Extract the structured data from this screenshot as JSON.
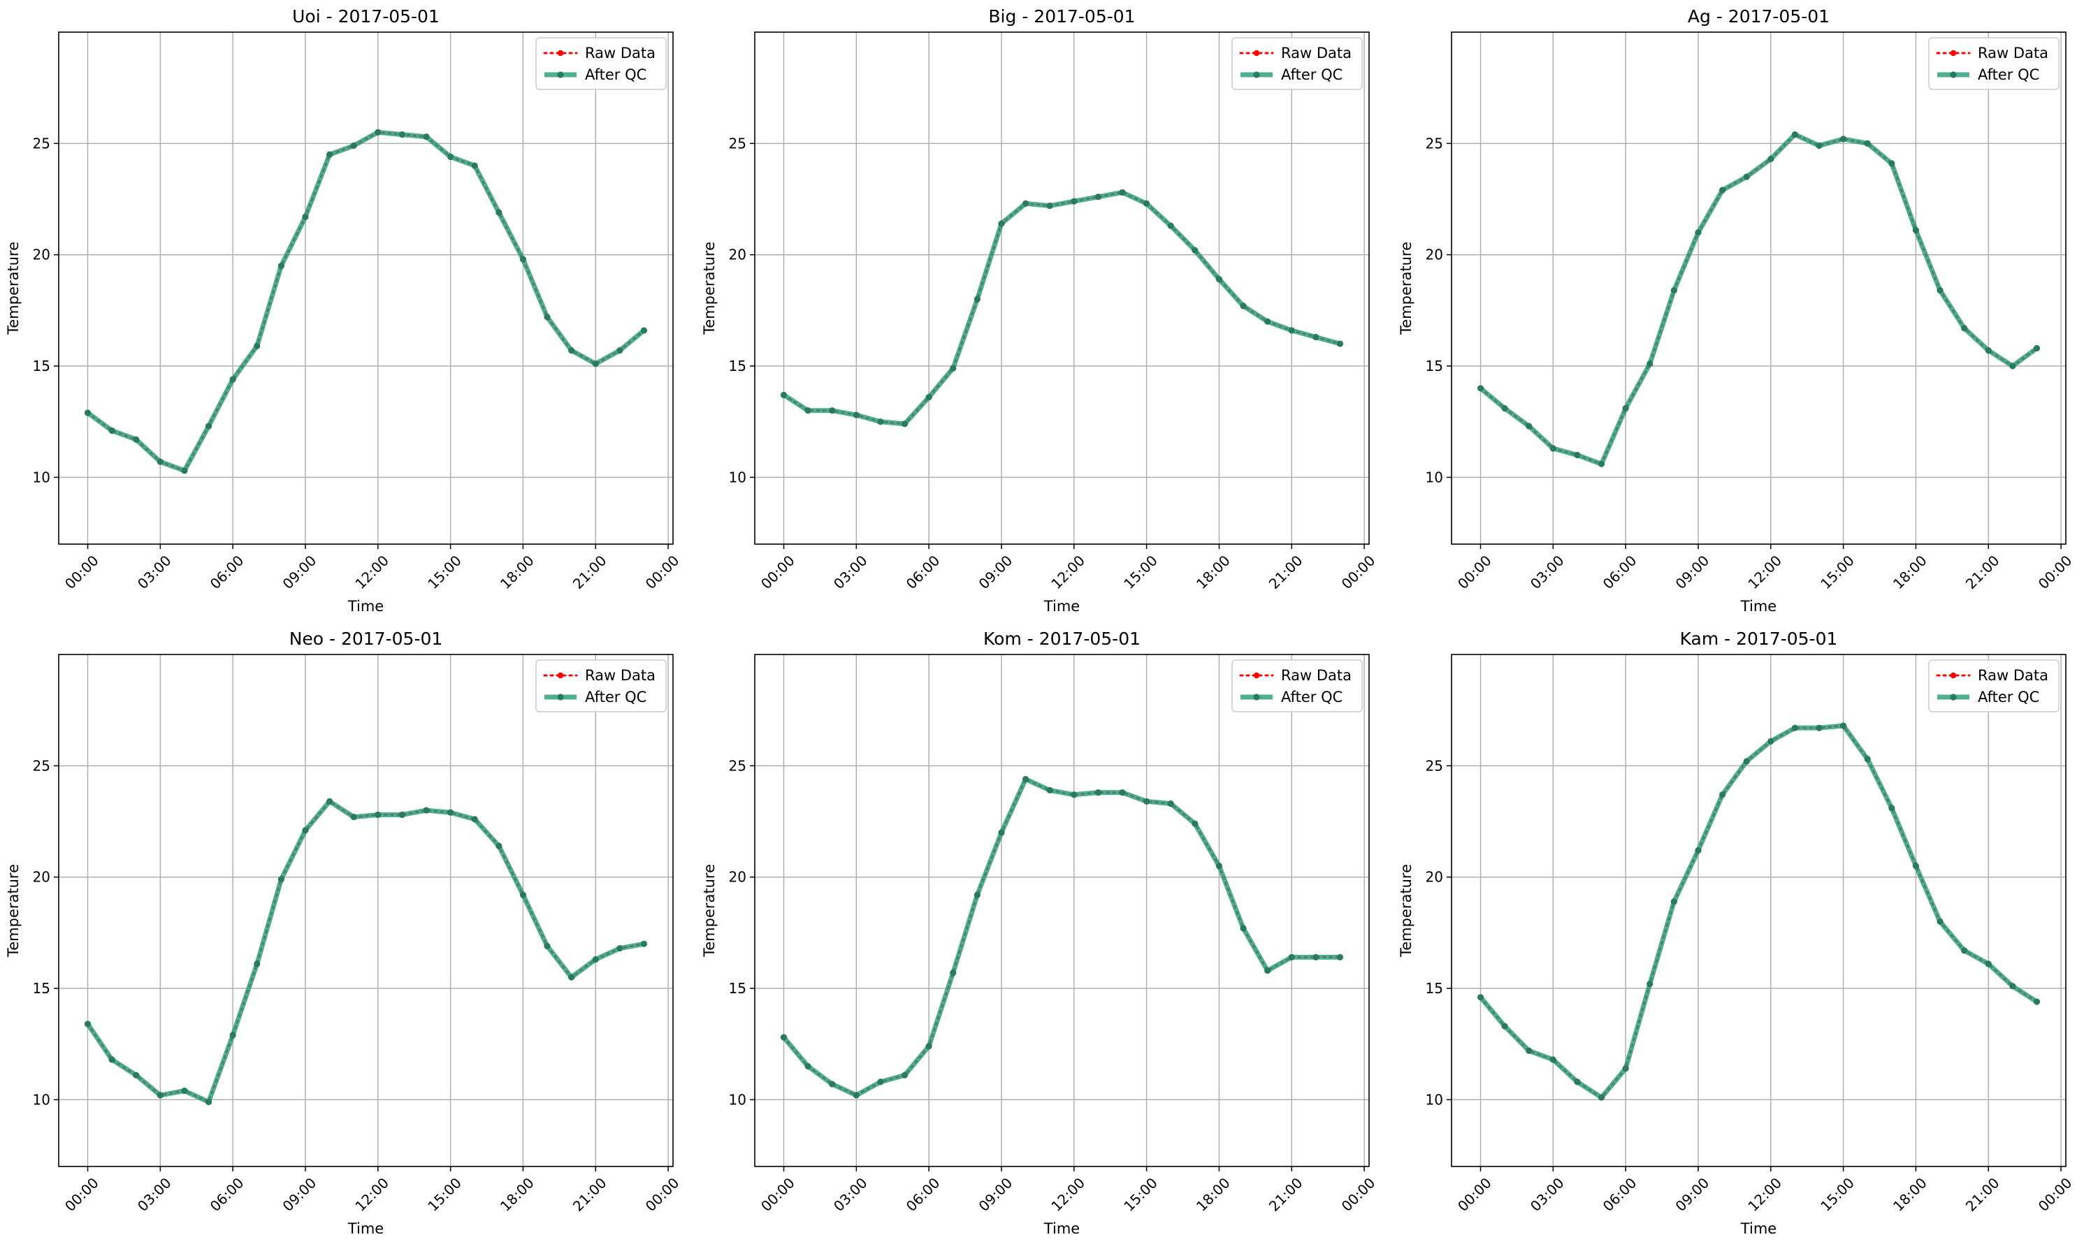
{
  "legend": {
    "raw_label": "Raw Data",
    "qc_label": "After QC",
    "placement": "upper right"
  },
  "colors": {
    "raw": "#ff0000",
    "qc": "#2a9d7a",
    "qc_marker": "#2a7a60",
    "grid": "#b0b0b0",
    "axes": "#000000"
  },
  "chart_data": [
    {
      "type": "line",
      "title": "Uoi - 2017-05-01",
      "xlabel": "Time",
      "ylabel": "Temperature",
      "x_ticks": [
        "00:00",
        "03:00",
        "06:00",
        "09:00",
        "12:00",
        "15:00",
        "18:00",
        "21:00",
        "00:00"
      ],
      "y_ticks": [
        10,
        15,
        20,
        25
      ],
      "ylim": [
        7,
        30
      ],
      "grid": true,
      "x": [
        "00:00",
        "01:00",
        "02:00",
        "03:00",
        "04:00",
        "05:00",
        "06:00",
        "07:00",
        "08:00",
        "09:00",
        "10:00",
        "11:00",
        "12:00",
        "13:00",
        "14:00",
        "15:00",
        "16:00",
        "17:00",
        "18:00",
        "19:00",
        "20:00",
        "21:00",
        "22:00",
        "23:00"
      ],
      "series": [
        {
          "name": "Raw Data",
          "values": [
            12.9,
            12.1,
            11.7,
            10.7,
            10.3,
            12.3,
            14.4,
            15.9,
            19.5,
            21.7,
            24.5,
            24.9,
            25.5,
            25.4,
            25.3,
            24.4,
            24.0,
            21.9,
            19.8,
            17.2,
            15.7,
            15.1,
            15.7,
            16.6
          ]
        },
        {
          "name": "After QC",
          "values": [
            12.9,
            12.1,
            11.7,
            10.7,
            10.3,
            12.3,
            14.4,
            15.9,
            19.5,
            21.7,
            24.5,
            24.9,
            25.5,
            25.4,
            25.3,
            24.4,
            24.0,
            21.9,
            19.8,
            17.2,
            15.7,
            15.1,
            15.7,
            16.6
          ]
        }
      ]
    },
    {
      "type": "line",
      "title": "Big - 2017-05-01",
      "xlabel": "Time",
      "ylabel": "Temperature",
      "x_ticks": [
        "00:00",
        "03:00",
        "06:00",
        "09:00",
        "12:00",
        "15:00",
        "18:00",
        "21:00",
        "00:00"
      ],
      "y_ticks": [
        10,
        15,
        20,
        25
      ],
      "ylim": [
        7,
        30
      ],
      "grid": true,
      "x": [
        "00:00",
        "01:00",
        "02:00",
        "03:00",
        "04:00",
        "05:00",
        "06:00",
        "07:00",
        "08:00",
        "09:00",
        "10:00",
        "11:00",
        "12:00",
        "13:00",
        "14:00",
        "15:00",
        "16:00",
        "17:00",
        "18:00",
        "19:00",
        "20:00",
        "21:00",
        "22:00",
        "23:00"
      ],
      "series": [
        {
          "name": "Raw Data",
          "values": [
            13.7,
            13.0,
            13.0,
            12.8,
            12.5,
            12.4,
            13.6,
            14.9,
            18.0,
            21.4,
            22.3,
            22.2,
            22.4,
            22.6,
            22.8,
            22.3,
            21.3,
            20.2,
            18.9,
            17.7,
            17.0,
            16.6,
            16.3,
            16.0
          ]
        },
        {
          "name": "After QC",
          "values": [
            13.7,
            13.0,
            13.0,
            12.8,
            12.5,
            12.4,
            13.6,
            14.9,
            18.0,
            21.4,
            22.3,
            22.2,
            22.4,
            22.6,
            22.8,
            22.3,
            21.3,
            20.2,
            18.9,
            17.7,
            17.0,
            16.6,
            16.3,
            16.0
          ]
        }
      ]
    },
    {
      "type": "line",
      "title": "Ag - 2017-05-01",
      "xlabel": "Time",
      "ylabel": "Temperature",
      "x_ticks": [
        "00:00",
        "03:00",
        "06:00",
        "09:00",
        "12:00",
        "15:00",
        "18:00",
        "21:00",
        "00:00"
      ],
      "y_ticks": [
        10,
        15,
        20,
        25
      ],
      "ylim": [
        7,
        30
      ],
      "grid": true,
      "x": [
        "00:00",
        "01:00",
        "02:00",
        "03:00",
        "04:00",
        "05:00",
        "06:00",
        "07:00",
        "08:00",
        "09:00",
        "10:00",
        "11:00",
        "12:00",
        "13:00",
        "14:00",
        "15:00",
        "16:00",
        "17:00",
        "18:00",
        "19:00",
        "20:00",
        "21:00",
        "22:00",
        "23:00"
      ],
      "series": [
        {
          "name": "Raw Data",
          "values": [
            14.0,
            13.1,
            12.3,
            11.3,
            11.0,
            10.6,
            13.1,
            15.1,
            18.4,
            21.0,
            22.9,
            23.5,
            24.3,
            25.4,
            24.9,
            25.2,
            25.0,
            24.1,
            21.1,
            18.4,
            16.7,
            15.7,
            15.0,
            15.8
          ]
        },
        {
          "name": "After QC",
          "values": [
            14.0,
            13.1,
            12.3,
            11.3,
            11.0,
            10.6,
            13.1,
            15.1,
            18.4,
            21.0,
            22.9,
            23.5,
            24.3,
            25.4,
            24.9,
            25.2,
            25.0,
            24.1,
            21.1,
            18.4,
            16.7,
            15.7,
            15.0,
            15.8
          ]
        }
      ]
    },
    {
      "type": "line",
      "title": "Neo - 2017-05-01",
      "xlabel": "Time",
      "ylabel": "Temperature",
      "x_ticks": [
        "00:00",
        "03:00",
        "06:00",
        "09:00",
        "12:00",
        "15:00",
        "18:00",
        "21:00",
        "00:00"
      ],
      "y_ticks": [
        10,
        15,
        20,
        25
      ],
      "ylim": [
        7,
        30
      ],
      "grid": true,
      "x": [
        "00:00",
        "01:00",
        "02:00",
        "03:00",
        "04:00",
        "05:00",
        "06:00",
        "07:00",
        "08:00",
        "09:00",
        "10:00",
        "11:00",
        "12:00",
        "13:00",
        "14:00",
        "15:00",
        "16:00",
        "17:00",
        "18:00",
        "19:00",
        "20:00",
        "21:00",
        "22:00",
        "23:00"
      ],
      "series": [
        {
          "name": "Raw Data",
          "values": [
            13.4,
            11.8,
            11.1,
            10.2,
            10.4,
            9.9,
            12.9,
            16.1,
            19.9,
            22.1,
            23.4,
            22.7,
            22.8,
            22.8,
            23.0,
            22.9,
            22.6,
            21.4,
            19.2,
            16.9,
            15.5,
            16.3,
            16.8,
            17.0
          ]
        },
        {
          "name": "After QC",
          "values": [
            13.4,
            11.8,
            11.1,
            10.2,
            10.4,
            9.9,
            12.9,
            16.1,
            19.9,
            22.1,
            23.4,
            22.7,
            22.8,
            22.8,
            23.0,
            22.9,
            22.6,
            21.4,
            19.2,
            16.9,
            15.5,
            16.3,
            16.8,
            17.0
          ]
        }
      ]
    },
    {
      "type": "line",
      "title": "Kom - 2017-05-01",
      "xlabel": "Time",
      "ylabel": "Temperature",
      "x_ticks": [
        "00:00",
        "03:00",
        "06:00",
        "09:00",
        "12:00",
        "15:00",
        "18:00",
        "21:00",
        "00:00"
      ],
      "y_ticks": [
        10,
        15,
        20,
        25
      ],
      "ylim": [
        7,
        30
      ],
      "grid": true,
      "x": [
        "00:00",
        "01:00",
        "02:00",
        "03:00",
        "04:00",
        "05:00",
        "06:00",
        "07:00",
        "08:00",
        "09:00",
        "10:00",
        "11:00",
        "12:00",
        "13:00",
        "14:00",
        "15:00",
        "16:00",
        "17:00",
        "18:00",
        "19:00",
        "20:00",
        "21:00",
        "22:00",
        "23:00"
      ],
      "series": [
        {
          "name": "Raw Data",
          "values": [
            12.8,
            11.5,
            10.7,
            10.2,
            10.8,
            11.1,
            12.4,
            15.7,
            19.2,
            22.0,
            24.4,
            23.9,
            23.7,
            23.8,
            23.8,
            23.4,
            23.3,
            22.4,
            20.5,
            17.7,
            15.8,
            16.4,
            16.4,
            16.4
          ]
        },
        {
          "name": "After QC",
          "values": [
            12.8,
            11.5,
            10.7,
            10.2,
            10.8,
            11.1,
            12.4,
            15.7,
            19.2,
            22.0,
            24.4,
            23.9,
            23.7,
            23.8,
            23.8,
            23.4,
            23.3,
            22.4,
            20.5,
            17.7,
            15.8,
            16.4,
            16.4,
            16.4
          ]
        }
      ]
    },
    {
      "type": "line",
      "title": "Kam - 2017-05-01",
      "xlabel": "Time",
      "ylabel": "Temperature",
      "x_ticks": [
        "00:00",
        "03:00",
        "06:00",
        "09:00",
        "12:00",
        "15:00",
        "18:00",
        "21:00",
        "00:00"
      ],
      "y_ticks": [
        10,
        15,
        20,
        25
      ],
      "ylim": [
        7,
        30
      ],
      "grid": true,
      "x": [
        "00:00",
        "01:00",
        "02:00",
        "03:00",
        "04:00",
        "05:00",
        "06:00",
        "07:00",
        "08:00",
        "09:00",
        "10:00",
        "11:00",
        "12:00",
        "13:00",
        "14:00",
        "15:00",
        "16:00",
        "17:00",
        "18:00",
        "19:00",
        "20:00",
        "21:00",
        "22:00",
        "23:00"
      ],
      "series": [
        {
          "name": "Raw Data",
          "values": [
            14.6,
            13.3,
            12.2,
            11.8,
            10.8,
            10.1,
            11.4,
            15.2,
            18.9,
            21.2,
            23.7,
            25.2,
            26.1,
            26.7,
            26.7,
            26.8,
            25.3,
            23.1,
            20.5,
            18.0,
            16.7,
            16.1,
            15.1,
            14.4
          ]
        },
        {
          "name": "After QC",
          "values": [
            14.6,
            13.3,
            12.2,
            11.8,
            10.8,
            10.1,
            11.4,
            15.2,
            18.9,
            21.2,
            23.7,
            25.2,
            26.1,
            26.7,
            26.7,
            26.8,
            25.3,
            23.1,
            20.5,
            18.0,
            16.7,
            16.1,
            15.1,
            14.4
          ]
        }
      ]
    }
  ]
}
